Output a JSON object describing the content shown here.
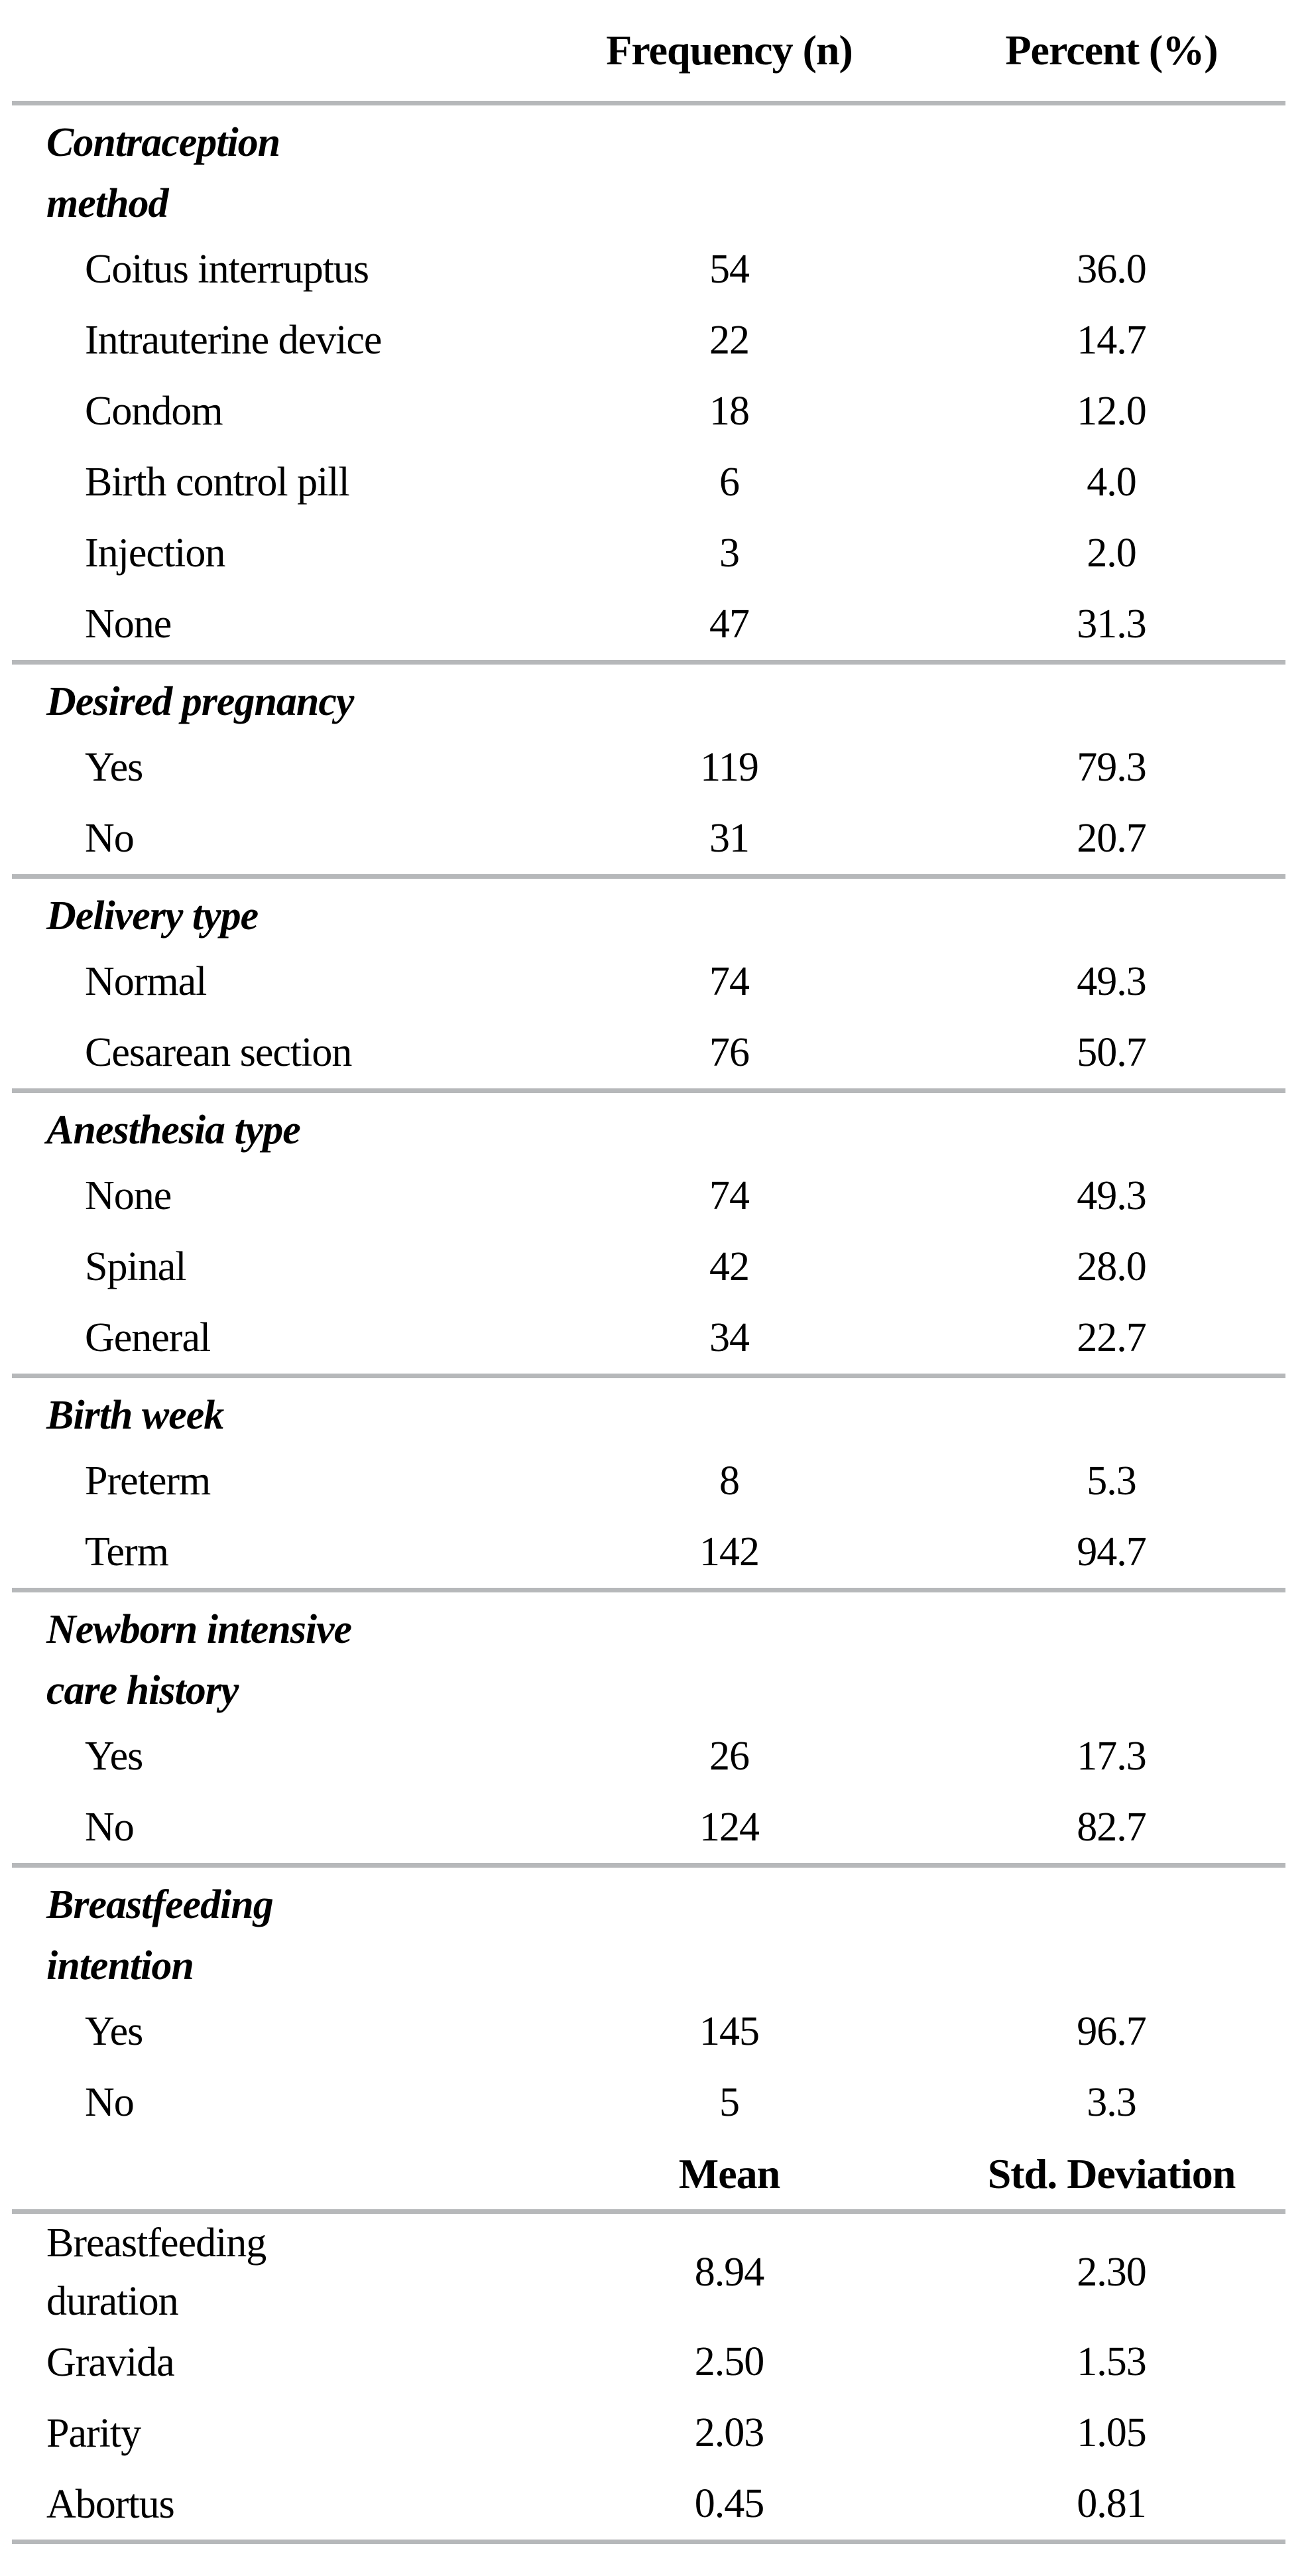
{
  "header": {
    "freq": "Frequency (n)",
    "pct": "Percent (%)"
  },
  "sections": [
    {
      "line1": "Contraception",
      "line2": "method",
      "rows": [
        {
          "label": "Coitus interruptus",
          "freq": "54",
          "pct": "36.0"
        },
        {
          "label": "Intrauterine device",
          "freq": "22",
          "pct": "14.7"
        },
        {
          "label": "Condom",
          "freq": "18",
          "pct": "12.0"
        },
        {
          "label": "Birth control pill",
          "freq": "6",
          "pct": "4.0"
        },
        {
          "label": "Injection",
          "freq": "3",
          "pct": "2.0"
        },
        {
          "label": "None",
          "freq": "47",
          "pct": "31.3"
        }
      ]
    },
    {
      "line1": "Desired pregnancy",
      "line2": "",
      "rows": [
        {
          "label": "Yes",
          "freq": "119",
          "pct": "79.3"
        },
        {
          "label": "No",
          "freq": "31",
          "pct": "20.7"
        }
      ]
    },
    {
      "line1": "Delivery type",
      "line2": "",
      "rows": [
        {
          "label": "Normal",
          "freq": "74",
          "pct": "49.3"
        },
        {
          "label": "Cesarean section",
          "freq": "76",
          "pct": "50.7"
        }
      ]
    },
    {
      "line1": "Anesthesia type",
      "line2": "",
      "rows": [
        {
          "label": "None",
          "freq": "74",
          "pct": "49.3"
        },
        {
          "label": "Spinal",
          "freq": "42",
          "pct": "28.0"
        },
        {
          "label": "General",
          "freq": "34",
          "pct": "22.7"
        }
      ]
    },
    {
      "line1": "Birth week",
      "line2": "",
      "rows": [
        {
          "label": "Preterm",
          "freq": "8",
          "pct": "5.3"
        },
        {
          "label": "Term",
          "freq": "142",
          "pct": "94.7"
        }
      ]
    },
    {
      "line1": "Newborn intensive",
      "line2": "care history",
      "rows": [
        {
          "label": "Yes",
          "freq": "26",
          "pct": "17.3"
        },
        {
          "label": "No",
          "freq": "124",
          "pct": "82.7"
        }
      ]
    },
    {
      "line1": "Breastfeeding",
      "line2": "intention",
      "rows": [
        {
          "label": "Yes",
          "freq": "145",
          "pct": "96.7"
        },
        {
          "label": "No",
          "freq": "5",
          "pct": "3.3"
        }
      ]
    }
  ],
  "stats": {
    "header": {
      "mean": "Mean",
      "sd": "Std. Deviation"
    },
    "rows": [
      {
        "line1": "Breastfeeding",
        "line2": "duration",
        "mean": "8.94",
        "sd": "2.30"
      },
      {
        "line1": "Gravida",
        "line2": "",
        "mean": "2.50",
        "sd": "1.53"
      },
      {
        "line1": "Parity",
        "line2": "",
        "mean": "2.03",
        "sd": "1.05"
      },
      {
        "line1": "Abortus",
        "line2": "",
        "mean": "0.45",
        "sd": "0.81"
      }
    ]
  },
  "chart_data": {
    "type": "table",
    "title": "",
    "columns_part1": [
      "",
      "Frequency (n)",
      "Percent (%)"
    ],
    "columns_part2": [
      "",
      "Mean",
      "Std. Deviation"
    ],
    "groups": [
      {
        "name": "Contraception method",
        "rows": [
          [
            "Coitus interruptus",
            54,
            36.0
          ],
          [
            "Intrauterine device",
            22,
            14.7
          ],
          [
            "Condom",
            18,
            12.0
          ],
          [
            "Birth control pill",
            6,
            4.0
          ],
          [
            "Injection",
            3,
            2.0
          ],
          [
            "None",
            47,
            31.3
          ]
        ]
      },
      {
        "name": "Desired pregnancy",
        "rows": [
          [
            "Yes",
            119,
            79.3
          ],
          [
            "No",
            31,
            20.7
          ]
        ]
      },
      {
        "name": "Delivery type",
        "rows": [
          [
            "Normal",
            74,
            49.3
          ],
          [
            "Cesarean section",
            76,
            50.7
          ]
        ]
      },
      {
        "name": "Anesthesia type",
        "rows": [
          [
            "None",
            74,
            49.3
          ],
          [
            "Spinal",
            42,
            28.0
          ],
          [
            "General",
            34,
            22.7
          ]
        ]
      },
      {
        "name": "Birth week",
        "rows": [
          [
            "Preterm",
            8,
            5.3
          ],
          [
            "Term",
            142,
            94.7
          ]
        ]
      },
      {
        "name": "Newborn intensive care history",
        "rows": [
          [
            "Yes",
            26,
            17.3
          ],
          [
            "No",
            124,
            82.7
          ]
        ]
      },
      {
        "name": "Breastfeeding intention",
        "rows": [
          [
            "Yes",
            145,
            96.7
          ],
          [
            "No",
            5,
            3.3
          ]
        ]
      }
    ],
    "continuous_rows": [
      [
        "Breastfeeding duration",
        8.94,
        2.3
      ],
      [
        "Gravida",
        2.5,
        1.53
      ],
      [
        "Parity",
        2.03,
        1.05
      ],
      [
        "Abortus",
        0.45,
        0.81
      ]
    ],
    "rule_color": "#b6b8ba"
  }
}
